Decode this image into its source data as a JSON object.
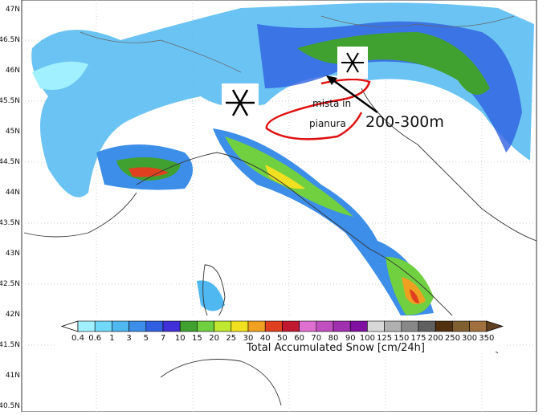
{
  "map": {
    "latitude_labels": [
      "47N",
      "46.5N",
      "46N",
      "45.5N",
      "45N",
      "44.5N",
      "44N",
      "43.5N",
      "43N",
      "42.5N",
      "42N",
      "41.5N",
      "41N",
      "40.5N"
    ],
    "colorbar": {
      "labels": [
        "0.4",
        "0.6",
        "1",
        "3",
        "5",
        "7",
        "10",
        "15",
        "20",
        "25",
        "30",
        "40",
        "50",
        "60",
        "70",
        "80",
        "90",
        "100",
        "125",
        "150",
        "175",
        "200",
        "250",
        "300",
        "350"
      ],
      "colors": [
        "#ffffff",
        "#a0f0ff",
        "#70d8f8",
        "#50b8f0",
        "#3c8ee8",
        "#3060e0",
        "#4030d8",
        "#40a030",
        "#70d040",
        "#c0e830",
        "#f0e020",
        "#f0a020",
        "#e04020",
        "#c01830",
        "#e070d0",
        "#c050c0",
        "#a030b0",
        "#8010a0",
        "#d8d8d8",
        "#b0b0b0",
        "#888888",
        "#606060",
        "#503010",
        "#806030",
        "#a07040",
        "#604020"
      ],
      "title": "Total Accumulated Snow [cm/24h]"
    },
    "annotations": {
      "rain_snow": [
        "mista in",
        "pianura"
      ],
      "snow_level": "200-300m"
    }
  }
}
